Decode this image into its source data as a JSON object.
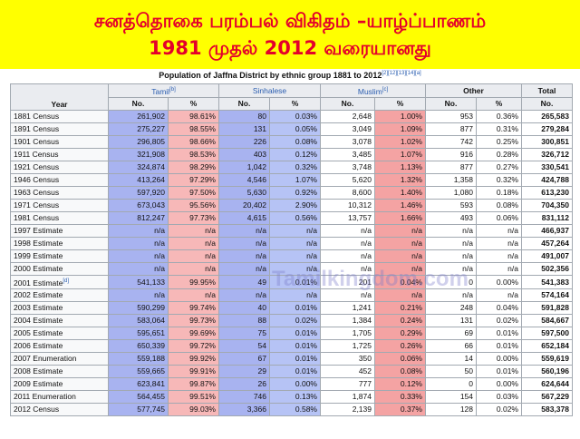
{
  "banner": {
    "line1": "சனத்தொகை பரம்பல் விகிதம் –யாழ்ப்பாணம்",
    "line2": "1981 முதல் 2012 வரையானது"
  },
  "caption": {
    "text": "Population of Jaffna District by ethnic group 1881 to 2012",
    "refs": "[2][12][13][14][a]"
  },
  "headers": {
    "year": "Year",
    "tamil": "Tamil",
    "tamil_ref": "[b]",
    "sinhalese": "Sinhalese",
    "muslim": "Muslim",
    "muslim_ref": "[c]",
    "other": "Other",
    "total": "Total",
    "no": "No.",
    "pct": "%"
  },
  "colors": {
    "banner_bg": "#ffff00",
    "banner_text": "#e4002b",
    "tamil_highlight": "#a8b3f0",
    "muslim_highlight": "#f4a3a3"
  },
  "watermark": "Tamilkingdom.com",
  "rows": [
    {
      "year": "1881 Census",
      "ref": "",
      "t": "261,902",
      "tp": "98.61%",
      "s": "80",
      "sp": "0.03%",
      "m": "2,648",
      "mp": "1.00%",
      "o": "953",
      "op": "0.36%",
      "total": "265,583"
    },
    {
      "year": "1891 Census",
      "ref": "",
      "t": "275,227",
      "tp": "98.55%",
      "s": "131",
      "sp": "0.05%",
      "m": "3,049",
      "mp": "1.09%",
      "o": "877",
      "op": "0.31%",
      "total": "279,284"
    },
    {
      "year": "1901 Census",
      "ref": "",
      "t": "296,805",
      "tp": "98.66%",
      "s": "226",
      "sp": "0.08%",
      "m": "3,078",
      "mp": "1.02%",
      "o": "742",
      "op": "0.25%",
      "total": "300,851"
    },
    {
      "year": "1911 Census",
      "ref": "",
      "t": "321,908",
      "tp": "98.53%",
      "s": "403",
      "sp": "0.12%",
      "m": "3,485",
      "mp": "1.07%",
      "o": "916",
      "op": "0.28%",
      "total": "326,712"
    },
    {
      "year": "1921 Census",
      "ref": "",
      "t": "324,874",
      "tp": "98.29%",
      "s": "1,042",
      "sp": "0.32%",
      "m": "3,748",
      "mp": "1.13%",
      "o": "877",
      "op": "0.27%",
      "total": "330,541"
    },
    {
      "year": "1946 Census",
      "ref": "",
      "t": "413,264",
      "tp": "97.29%",
      "s": "4,546",
      "sp": "1.07%",
      "m": "5,620",
      "mp": "1.32%",
      "o": "1,358",
      "op": "0.32%",
      "total": "424,788"
    },
    {
      "year": "1963 Census",
      "ref": "",
      "t": "597,920",
      "tp": "97.50%",
      "s": "5,630",
      "sp": "0.92%",
      "m": "8,600",
      "mp": "1.40%",
      "o": "1,080",
      "op": "0.18%",
      "total": "613,230"
    },
    {
      "year": "1971 Census",
      "ref": "",
      "t": "673,043",
      "tp": "95.56%",
      "s": "20,402",
      "sp": "2.90%",
      "m": "10,312",
      "mp": "1.46%",
      "o": "593",
      "op": "0.08%",
      "total": "704,350"
    },
    {
      "year": "1981 Census",
      "ref": "",
      "t": "812,247",
      "tp": "97.73%",
      "s": "4,615",
      "sp": "0.56%",
      "m": "13,757",
      "mp": "1.66%",
      "o": "493",
      "op": "0.06%",
      "total": "831,112"
    },
    {
      "year": "1997 Estimate",
      "ref": "",
      "t": "n/a",
      "tp": "n/a",
      "s": "n/a",
      "sp": "n/a",
      "m": "n/a",
      "mp": "n/a",
      "o": "n/a",
      "op": "n/a",
      "total": "466,937"
    },
    {
      "year": "1998 Estimate",
      "ref": "",
      "t": "n/a",
      "tp": "n/a",
      "s": "n/a",
      "sp": "n/a",
      "m": "n/a",
      "mp": "n/a",
      "o": "n/a",
      "op": "n/a",
      "total": "457,264"
    },
    {
      "year": "1999 Estimate",
      "ref": "",
      "t": "n/a",
      "tp": "n/a",
      "s": "n/a",
      "sp": "n/a",
      "m": "n/a",
      "mp": "n/a",
      "o": "n/a",
      "op": "n/a",
      "total": "491,007"
    },
    {
      "year": "2000 Estimate",
      "ref": "",
      "t": "n/a",
      "tp": "n/a",
      "s": "n/a",
      "sp": "n/a",
      "m": "n/a",
      "mp": "n/a",
      "o": "n/a",
      "op": "n/a",
      "total": "502,356"
    },
    {
      "year": "2001 Estimate",
      "ref": "[d]",
      "t": "541,133",
      "tp": "99.95%",
      "s": "49",
      "sp": "0.01%",
      "m": "201",
      "mp": "0.04%",
      "o": "0",
      "op": "0.00%",
      "total": "541,383"
    },
    {
      "year": "2002 Estimate",
      "ref": "",
      "t": "n/a",
      "tp": "n/a",
      "s": "n/a",
      "sp": "n/a",
      "m": "n/a",
      "mp": "n/a",
      "o": "n/a",
      "op": "n/a",
      "total": "574,164"
    },
    {
      "year": "2003 Estimate",
      "ref": "",
      "t": "590,299",
      "tp": "99.74%",
      "s": "40",
      "sp": "0.01%",
      "m": "1,241",
      "mp": "0.21%",
      "o": "248",
      "op": "0.04%",
      "total": "591,828"
    },
    {
      "year": "2004 Estimate",
      "ref": "",
      "t": "583,064",
      "tp": "99.73%",
      "s": "88",
      "sp": "0.02%",
      "m": "1,384",
      "mp": "0.24%",
      "o": "131",
      "op": "0.02%",
      "total": "584,667"
    },
    {
      "year": "2005 Estimate",
      "ref": "",
      "t": "595,651",
      "tp": "99.69%",
      "s": "75",
      "sp": "0.01%",
      "m": "1,705",
      "mp": "0.29%",
      "o": "69",
      "op": "0.01%",
      "total": "597,500"
    },
    {
      "year": "2006 Estimate",
      "ref": "",
      "t": "650,339",
      "tp": "99.72%",
      "s": "54",
      "sp": "0.01%",
      "m": "1,725",
      "mp": "0.26%",
      "o": "66",
      "op": "0.01%",
      "total": "652,184"
    },
    {
      "year": "2007 Enumeration",
      "ref": "",
      "t": "559,188",
      "tp": "99.92%",
      "s": "67",
      "sp": "0.01%",
      "m": "350",
      "mp": "0.06%",
      "o": "14",
      "op": "0.00%",
      "total": "559,619"
    },
    {
      "year": "2008 Estimate",
      "ref": "",
      "t": "559,665",
      "tp": "99.91%",
      "s": "29",
      "sp": "0.01%",
      "m": "452",
      "mp": "0.08%",
      "o": "50",
      "op": "0.01%",
      "total": "560,196"
    },
    {
      "year": "2009 Estimate",
      "ref": "",
      "t": "623,841",
      "tp": "99.87%",
      "s": "26",
      "sp": "0.00%",
      "m": "777",
      "mp": "0.12%",
      "o": "0",
      "op": "0.00%",
      "total": "624,644"
    },
    {
      "year": "2011 Enumeration",
      "ref": "",
      "t": "564,455",
      "tp": "99.51%",
      "s": "746",
      "sp": "0.13%",
      "m": "1,874",
      "mp": "0.33%",
      "o": "154",
      "op": "0.03%",
      "total": "567,229"
    },
    {
      "year": "2012 Census",
      "ref": "",
      "t": "577,745",
      "tp": "99.03%",
      "s": "3,366",
      "sp": "0.58%",
      "m": "2,139",
      "mp": "0.37%",
      "o": "128",
      "op": "0.02%",
      "total": "583,378"
    }
  ]
}
